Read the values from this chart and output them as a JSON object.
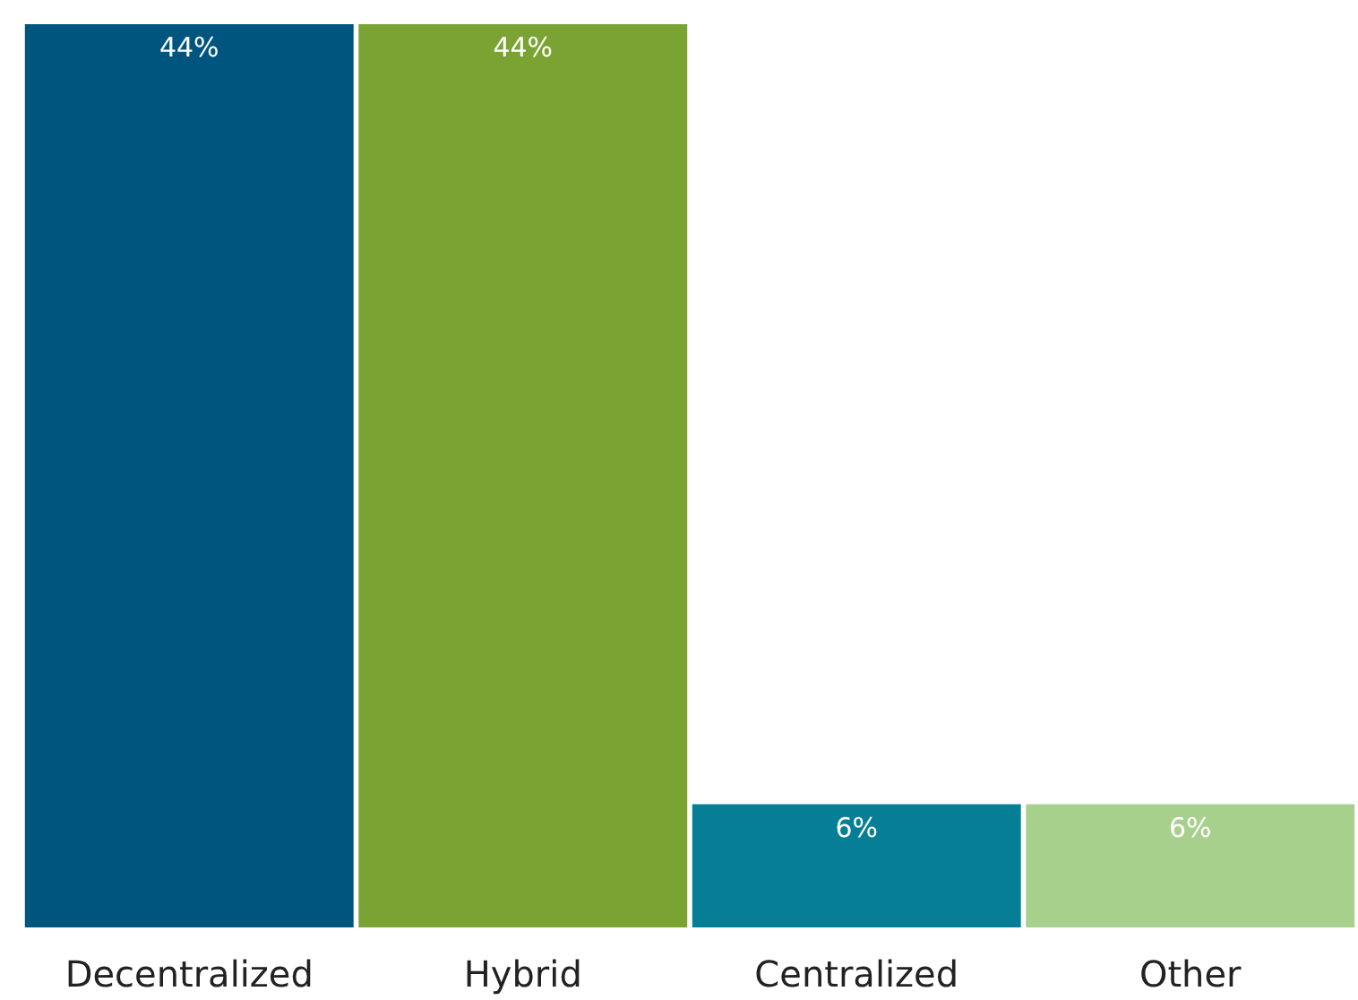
{
  "chart_data": {
    "type": "bar",
    "categories": [
      "Decentralized",
      "Hybrid",
      "Centralized",
      "Other"
    ],
    "values": [
      44,
      44,
      6,
      6
    ],
    "colors": [
      "#00557f",
      "#7aa334",
      "#067f96",
      "#a8d08d"
    ],
    "value_labels": [
      "44%",
      "44%",
      "6%",
      "6%"
    ],
    "grid": false
  }
}
